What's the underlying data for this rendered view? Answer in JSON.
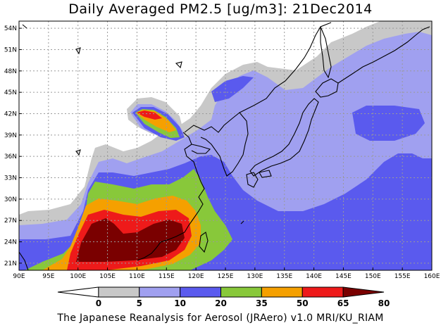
{
  "title": "Daily Averaged PM2.5 [ug/m3]: 21Dec2014",
  "credit": "The Japanese Reanalysis for Aerosol (JRAero) v1.0 MRI/KU_RIAM",
  "map": {
    "lon_range": [
      90,
      160
    ],
    "lat_range": [
      20,
      55
    ],
    "lon_ticks": [
      90,
      95,
      100,
      105,
      110,
      115,
      120,
      125,
      130,
      135,
      140,
      145,
      150,
      155,
      160
    ],
    "lon_tick_labels": [
      "90E",
      "95E",
      "100E",
      "105E",
      "110E",
      "115E",
      "120E",
      "125E",
      "130E",
      "135E",
      "140E",
      "145E",
      "150E",
      "155E",
      "160E"
    ],
    "lat_ticks": [
      21,
      24,
      27,
      30,
      33,
      36,
      39,
      42,
      45,
      48,
      51,
      54
    ],
    "lat_tick_labels": [
      "21N",
      "24N",
      "27N",
      "30N",
      "33N",
      "36N",
      "39N",
      "42N",
      "45N",
      "48N",
      "51N",
      "54N"
    ],
    "grid": "dotted"
  },
  "colorbar": {
    "labels": [
      "0",
      "5",
      "10",
      "20",
      "35",
      "50",
      "65",
      "80"
    ],
    "colors": [
      "#ffffff",
      "#c8c8c8",
      "#a0a0f0",
      "#5a5aee",
      "#88c83a",
      "#f5a000",
      "#ee1a1a",
      "#7a0000"
    ]
  },
  "palette": {
    "land_line": "#000000",
    "grid_line": "#9a9a9a",
    "class_5_10": "#c8c8c8",
    "class_10_20": "#a0a0f0",
    "class_20_35": "#5a5aee",
    "class_35_50": "#88c83a",
    "class_50_65": "#f5a000",
    "class_65_80": "#ee1a1a",
    "class_80_plus": "#7a0000"
  }
}
